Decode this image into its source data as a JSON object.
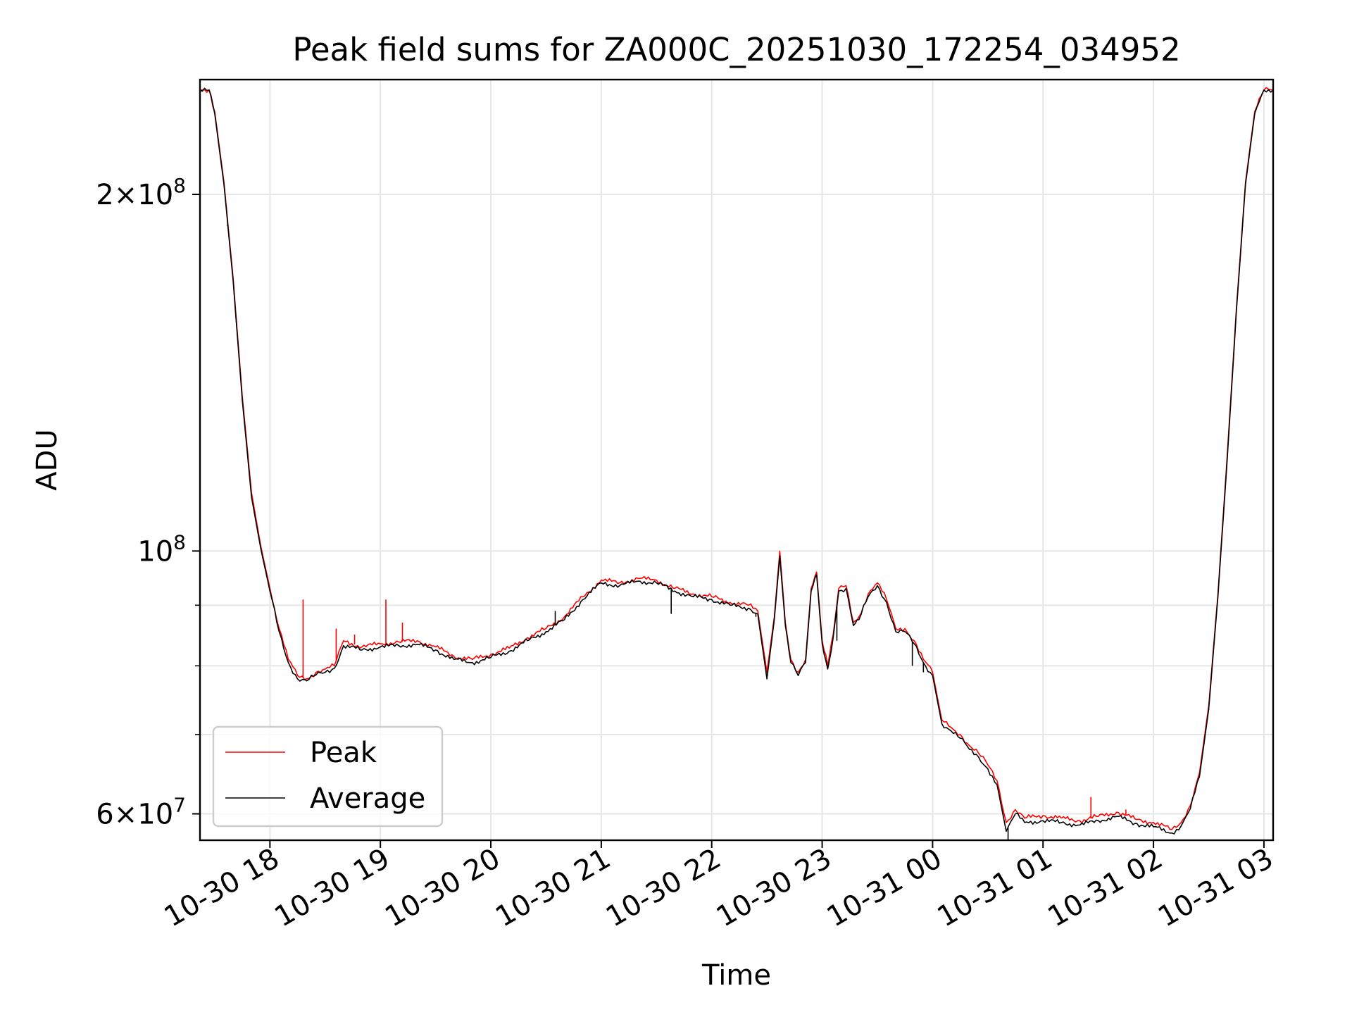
{
  "chart_data": {
    "type": "line",
    "title": "Peak field sums for ZA000C_20251030_172254_034952",
    "xlabel": "Time",
    "ylabel": "ADU",
    "yscale": "log",
    "ylim": [
      57000000,
      250000000
    ],
    "xlim": [
      "2025-10-30 17:22",
      "2025-10-31 03:05"
    ],
    "grid": true,
    "legend_position": "lower-left",
    "x_ticks": [
      {
        "value": "2025-10-30 18:00",
        "label": "10-30 18"
      },
      {
        "value": "2025-10-30 19:00",
        "label": "10-30 19"
      },
      {
        "value": "2025-10-30 20:00",
        "label": "10-30 20"
      },
      {
        "value": "2025-10-30 21:00",
        "label": "10-30 21"
      },
      {
        "value": "2025-10-30 22:00",
        "label": "10-30 22"
      },
      {
        "value": "2025-10-30 23:00",
        "label": "10-30 23"
      },
      {
        "value": "2025-10-31 00:00",
        "label": "10-31 00"
      },
      {
        "value": "2025-10-31 01:00",
        "label": "10-31 01"
      },
      {
        "value": "2025-10-31 02:00",
        "label": "10-31 02"
      },
      {
        "value": "2025-10-31 03:00",
        "label": "10-31 03"
      }
    ],
    "y_ticks": [
      {
        "value": 60000000,
        "mantissa": "6",
        "times": "×",
        "base": "10",
        "exp": "7"
      },
      {
        "value": 100000000,
        "mantissa": "",
        "times": "",
        "base": "10",
        "exp": "8"
      },
      {
        "value": 200000000,
        "mantissa": "2",
        "times": "×",
        "base": "10",
        "exp": "8"
      }
    ],
    "y_minor_ticks": [
      70000000,
      80000000,
      90000000
    ],
    "series": [
      {
        "name": "Peak",
        "color": "#ff0000",
        "points": [
          [
            "2025-10-30 17:22",
            245000000
          ],
          [
            "2025-10-30 17:27",
            245000000
          ],
          [
            "2025-10-30 17:30",
            235000000
          ],
          [
            "2025-10-30 17:35",
            205000000
          ],
          [
            "2025-10-30 17:40",
            170000000
          ],
          [
            "2025-10-30 17:45",
            135000000
          ],
          [
            "2025-10-30 17:50",
            112000000
          ],
          [
            "2025-10-30 17:55",
            101000000
          ],
          [
            "2025-10-30 18:00",
            93000000
          ],
          [
            "2025-10-30 18:05",
            86000000
          ],
          [
            "2025-10-30 18:10",
            81000000
          ],
          [
            "2025-10-30 18:15",
            78500000
          ],
          [
            "2025-10-30 18:20",
            78000000
          ],
          [
            "2025-10-30 18:25",
            79000000
          ],
          [
            "2025-10-30 18:30",
            79500000
          ],
          [
            "2025-10-30 18:35",
            80000000
          ],
          [
            "2025-10-30 18:40",
            84000000
          ],
          [
            "2025-10-30 18:50",
            83000000
          ],
          [
            "2025-10-30 19:00",
            83500000
          ],
          [
            "2025-10-30 19:10",
            83800000
          ],
          [
            "2025-10-30 19:20",
            84000000
          ],
          [
            "2025-10-30 19:30",
            83000000
          ],
          [
            "2025-10-30 19:40",
            81500000
          ],
          [
            "2025-10-30 19:50",
            81000000
          ],
          [
            "2025-10-30 20:00",
            81800000
          ],
          [
            "2025-10-30 20:10",
            82800000
          ],
          [
            "2025-10-30 20:20",
            84500000
          ],
          [
            "2025-10-30 20:30",
            86000000
          ],
          [
            "2025-10-30 20:40",
            88000000
          ],
          [
            "2025-10-30 20:50",
            91500000
          ],
          [
            "2025-10-30 21:00",
            94500000
          ],
          [
            "2025-10-30 21:10",
            94000000
          ],
          [
            "2025-10-30 21:20",
            94800000
          ],
          [
            "2025-10-30 21:30",
            94500000
          ],
          [
            "2025-10-30 21:40",
            93000000
          ],
          [
            "2025-10-30 21:50",
            92000000
          ],
          [
            "2025-10-30 22:00",
            91500000
          ],
          [
            "2025-10-30 22:10",
            90500000
          ],
          [
            "2025-10-30 22:20",
            90000000
          ],
          [
            "2025-10-30 22:25",
            89000000
          ],
          [
            "2025-10-30 22:30",
            79000000
          ],
          [
            "2025-10-30 22:34",
            88000000
          ],
          [
            "2025-10-30 22:37",
            100000000
          ],
          [
            "2025-10-30 22:40",
            87000000
          ],
          [
            "2025-10-30 22:43",
            81000000
          ],
          [
            "2025-10-30 22:47",
            79000000
          ],
          [
            "2025-10-30 22:51",
            81000000
          ],
          [
            "2025-10-30 22:54",
            93000000
          ],
          [
            "2025-10-30 22:57",
            96000000
          ],
          [
            "2025-10-30 23:00",
            84000000
          ],
          [
            "2025-10-30 23:03",
            80000000
          ],
          [
            "2025-10-30 23:06",
            85000000
          ],
          [
            "2025-10-30 23:09",
            93000000
          ],
          [
            "2025-10-30 23:13",
            93500000
          ],
          [
            "2025-10-30 23:17",
            87000000
          ],
          [
            "2025-10-30 23:20",
            88000000
          ],
          [
            "2025-10-30 23:25",
            92000000
          ],
          [
            "2025-10-30 23:30",
            94000000
          ],
          [
            "2025-10-30 23:35",
            91000000
          ],
          [
            "2025-10-30 23:40",
            86000000
          ],
          [
            "2025-10-30 23:45",
            86000000
          ],
          [
            "2025-10-30 23:50",
            84000000
          ],
          [
            "2025-10-30 23:55",
            81000000
          ],
          [
            "2025-10-31 00:00",
            79000000
          ],
          [
            "2025-10-31 00:05",
            72000000
          ],
          [
            "2025-10-31 00:10",
            71000000
          ],
          [
            "2025-10-31 00:15",
            70000000
          ],
          [
            "2025-10-31 00:20",
            68500000
          ],
          [
            "2025-10-31 00:25",
            67500000
          ],
          [
            "2025-10-31 00:30",
            66000000
          ],
          [
            "2025-10-31 00:35",
            64000000
          ],
          [
            "2025-10-31 00:40",
            59000000
          ],
          [
            "2025-10-31 00:45",
            60500000
          ],
          [
            "2025-10-31 00:50",
            59500000
          ],
          [
            "2025-10-31 01:00",
            59800000
          ],
          [
            "2025-10-31 01:10",
            59500000
          ],
          [
            "2025-10-31 01:20",
            59200000
          ],
          [
            "2025-10-31 01:30",
            59700000
          ],
          [
            "2025-10-31 01:40",
            60200000
          ],
          [
            "2025-10-31 01:50",
            59400000
          ],
          [
            "2025-10-31 02:00",
            59000000
          ],
          [
            "2025-10-31 02:10",
            58200000
          ],
          [
            "2025-10-31 02:15",
            59000000
          ],
          [
            "2025-10-31 02:20",
            61000000
          ],
          [
            "2025-10-31 02:25",
            65000000
          ],
          [
            "2025-10-31 02:30",
            74000000
          ],
          [
            "2025-10-31 02:35",
            92000000
          ],
          [
            "2025-10-31 02:40",
            120000000
          ],
          [
            "2025-10-31 02:45",
            160000000
          ],
          [
            "2025-10-31 02:50",
            205000000
          ],
          [
            "2025-10-31 02:55",
            235000000
          ],
          [
            "2025-10-31 03:00",
            245000000
          ],
          [
            "2025-10-31 03:05",
            245000000
          ]
        ],
        "spikes": [
          [
            "2025-10-30 18:18",
            91000000
          ],
          [
            "2025-10-30 18:36",
            86000000
          ],
          [
            "2025-10-30 18:46",
            85000000
          ],
          [
            "2025-10-30 19:03",
            91000000
          ],
          [
            "2025-10-30 19:12",
            87000000
          ],
          [
            "2025-10-31 01:26",
            62000000
          ],
          [
            "2025-10-31 01:45",
            60500000
          ]
        ]
      },
      {
        "name": "Average",
        "color": "#000000",
        "points": [
          [
            "2025-10-30 17:22",
            245000000
          ],
          [
            "2025-10-30 17:27",
            245000000
          ],
          [
            "2025-10-30 17:30",
            234000000
          ],
          [
            "2025-10-30 17:35",
            204000000
          ],
          [
            "2025-10-30 17:40",
            169000000
          ],
          [
            "2025-10-30 17:45",
            134000000
          ],
          [
            "2025-10-30 17:50",
            111000000
          ],
          [
            "2025-10-30 17:55",
            100500000
          ],
          [
            "2025-10-30 18:00",
            92500000
          ],
          [
            "2025-10-30 18:05",
            85500000
          ],
          [
            "2025-10-30 18:10",
            80500000
          ],
          [
            "2025-10-30 18:15",
            78000000
          ],
          [
            "2025-10-30 18:20",
            77700000
          ],
          [
            "2025-10-30 18:25",
            78600000
          ],
          [
            "2025-10-30 18:30",
            79000000
          ],
          [
            "2025-10-30 18:35",
            79600000
          ],
          [
            "2025-10-30 18:40",
            83200000
          ],
          [
            "2025-10-30 18:50",
            82500000
          ],
          [
            "2025-10-30 19:00",
            83000000
          ],
          [
            "2025-10-30 19:10",
            83200000
          ],
          [
            "2025-10-30 19:20",
            83400000
          ],
          [
            "2025-10-30 19:30",
            82500000
          ],
          [
            "2025-10-30 19:40",
            81000000
          ],
          [
            "2025-10-30 19:50",
            80500000
          ],
          [
            "2025-10-30 20:00",
            81300000
          ],
          [
            "2025-10-30 20:10",
            82300000
          ],
          [
            "2025-10-30 20:20",
            84000000
          ],
          [
            "2025-10-30 20:30",
            85500000
          ],
          [
            "2025-10-30 20:40",
            87500000
          ],
          [
            "2025-10-30 20:50",
            91000000
          ],
          [
            "2025-10-30 21:00",
            94000000
          ],
          [
            "2025-10-30 21:10",
            93500000
          ],
          [
            "2025-10-30 21:20",
            94300000
          ],
          [
            "2025-10-30 21:30",
            94000000
          ],
          [
            "2025-10-30 21:40",
            92500000
          ],
          [
            "2025-10-30 21:50",
            91500000
          ],
          [
            "2025-10-30 22:00",
            91000000
          ],
          [
            "2025-10-30 22:10",
            90000000
          ],
          [
            "2025-10-30 22:20",
            89500000
          ],
          [
            "2025-10-30 22:25",
            88500000
          ],
          [
            "2025-10-30 22:30",
            78000000
          ],
          [
            "2025-10-30 22:34",
            87500000
          ],
          [
            "2025-10-30 22:37",
            99000000
          ],
          [
            "2025-10-30 22:40",
            86500000
          ],
          [
            "2025-10-30 22:43",
            80500000
          ],
          [
            "2025-10-30 22:47",
            78500000
          ],
          [
            "2025-10-30 22:51",
            80500000
          ],
          [
            "2025-10-30 22:54",
            92500000
          ],
          [
            "2025-10-30 22:57",
            95500000
          ],
          [
            "2025-10-30 23:00",
            83500000
          ],
          [
            "2025-10-30 23:03",
            79500000
          ],
          [
            "2025-10-30 23:06",
            84500000
          ],
          [
            "2025-10-30 23:09",
            92500000
          ],
          [
            "2025-10-30 23:13",
            93000000
          ],
          [
            "2025-10-30 23:17",
            86500000
          ],
          [
            "2025-10-30 23:20",
            87500000
          ],
          [
            "2025-10-30 23:25",
            91500000
          ],
          [
            "2025-10-30 23:30",
            93500000
          ],
          [
            "2025-10-30 23:35",
            90500000
          ],
          [
            "2025-10-30 23:40",
            85500000
          ],
          [
            "2025-10-30 23:45",
            85500000
          ],
          [
            "2025-10-30 23:50",
            83500000
          ],
          [
            "2025-10-30 23:55",
            80500000
          ],
          [
            "2025-10-31 00:00",
            78500000
          ],
          [
            "2025-10-31 00:05",
            71500000
          ],
          [
            "2025-10-31 00:10",
            70500000
          ],
          [
            "2025-10-31 00:15",
            69500000
          ],
          [
            "2025-10-31 00:20",
            68000000
          ],
          [
            "2025-10-31 00:25",
            67000000
          ],
          [
            "2025-10-31 00:30",
            65500000
          ],
          [
            "2025-10-31 00:35",
            63500000
          ],
          [
            "2025-10-31 00:40",
            58000000
          ],
          [
            "2025-10-31 00:45",
            60000000
          ],
          [
            "2025-10-31 00:50",
            59000000
          ],
          [
            "2025-10-31 01:00",
            59200000
          ],
          [
            "2025-10-31 01:10",
            59000000
          ],
          [
            "2025-10-31 01:20",
            58700000
          ],
          [
            "2025-10-31 01:30",
            59200000
          ],
          [
            "2025-10-31 01:40",
            59700000
          ],
          [
            "2025-10-31 01:50",
            58900000
          ],
          [
            "2025-10-31 02:00",
            58500000
          ],
          [
            "2025-10-31 02:10",
            57800000
          ],
          [
            "2025-10-31 02:15",
            58600000
          ],
          [
            "2025-10-31 02:20",
            60600000
          ],
          [
            "2025-10-31 02:25",
            64500000
          ],
          [
            "2025-10-31 02:30",
            73500000
          ],
          [
            "2025-10-31 02:35",
            91500000
          ],
          [
            "2025-10-31 02:40",
            119000000
          ],
          [
            "2025-10-31 02:45",
            159000000
          ],
          [
            "2025-10-31 02:50",
            204000000
          ],
          [
            "2025-10-31 02:55",
            234000000
          ],
          [
            "2025-10-31 03:00",
            245000000
          ],
          [
            "2025-10-31 03:05",
            245000000
          ]
        ],
        "spikes": [
          [
            "2025-10-30 17:37",
            188000000
          ],
          [
            "2025-10-30 20:35",
            89000000
          ],
          [
            "2025-10-30 21:38",
            88500000
          ],
          [
            "2025-10-30 22:24",
            88000000
          ],
          [
            "2025-10-30 23:08",
            84000000
          ],
          [
            "2025-10-30 23:49",
            80000000
          ],
          [
            "2025-10-30 23:55",
            79000000
          ],
          [
            "2025-10-31 00:41",
            56800000
          ]
        ]
      }
    ]
  }
}
